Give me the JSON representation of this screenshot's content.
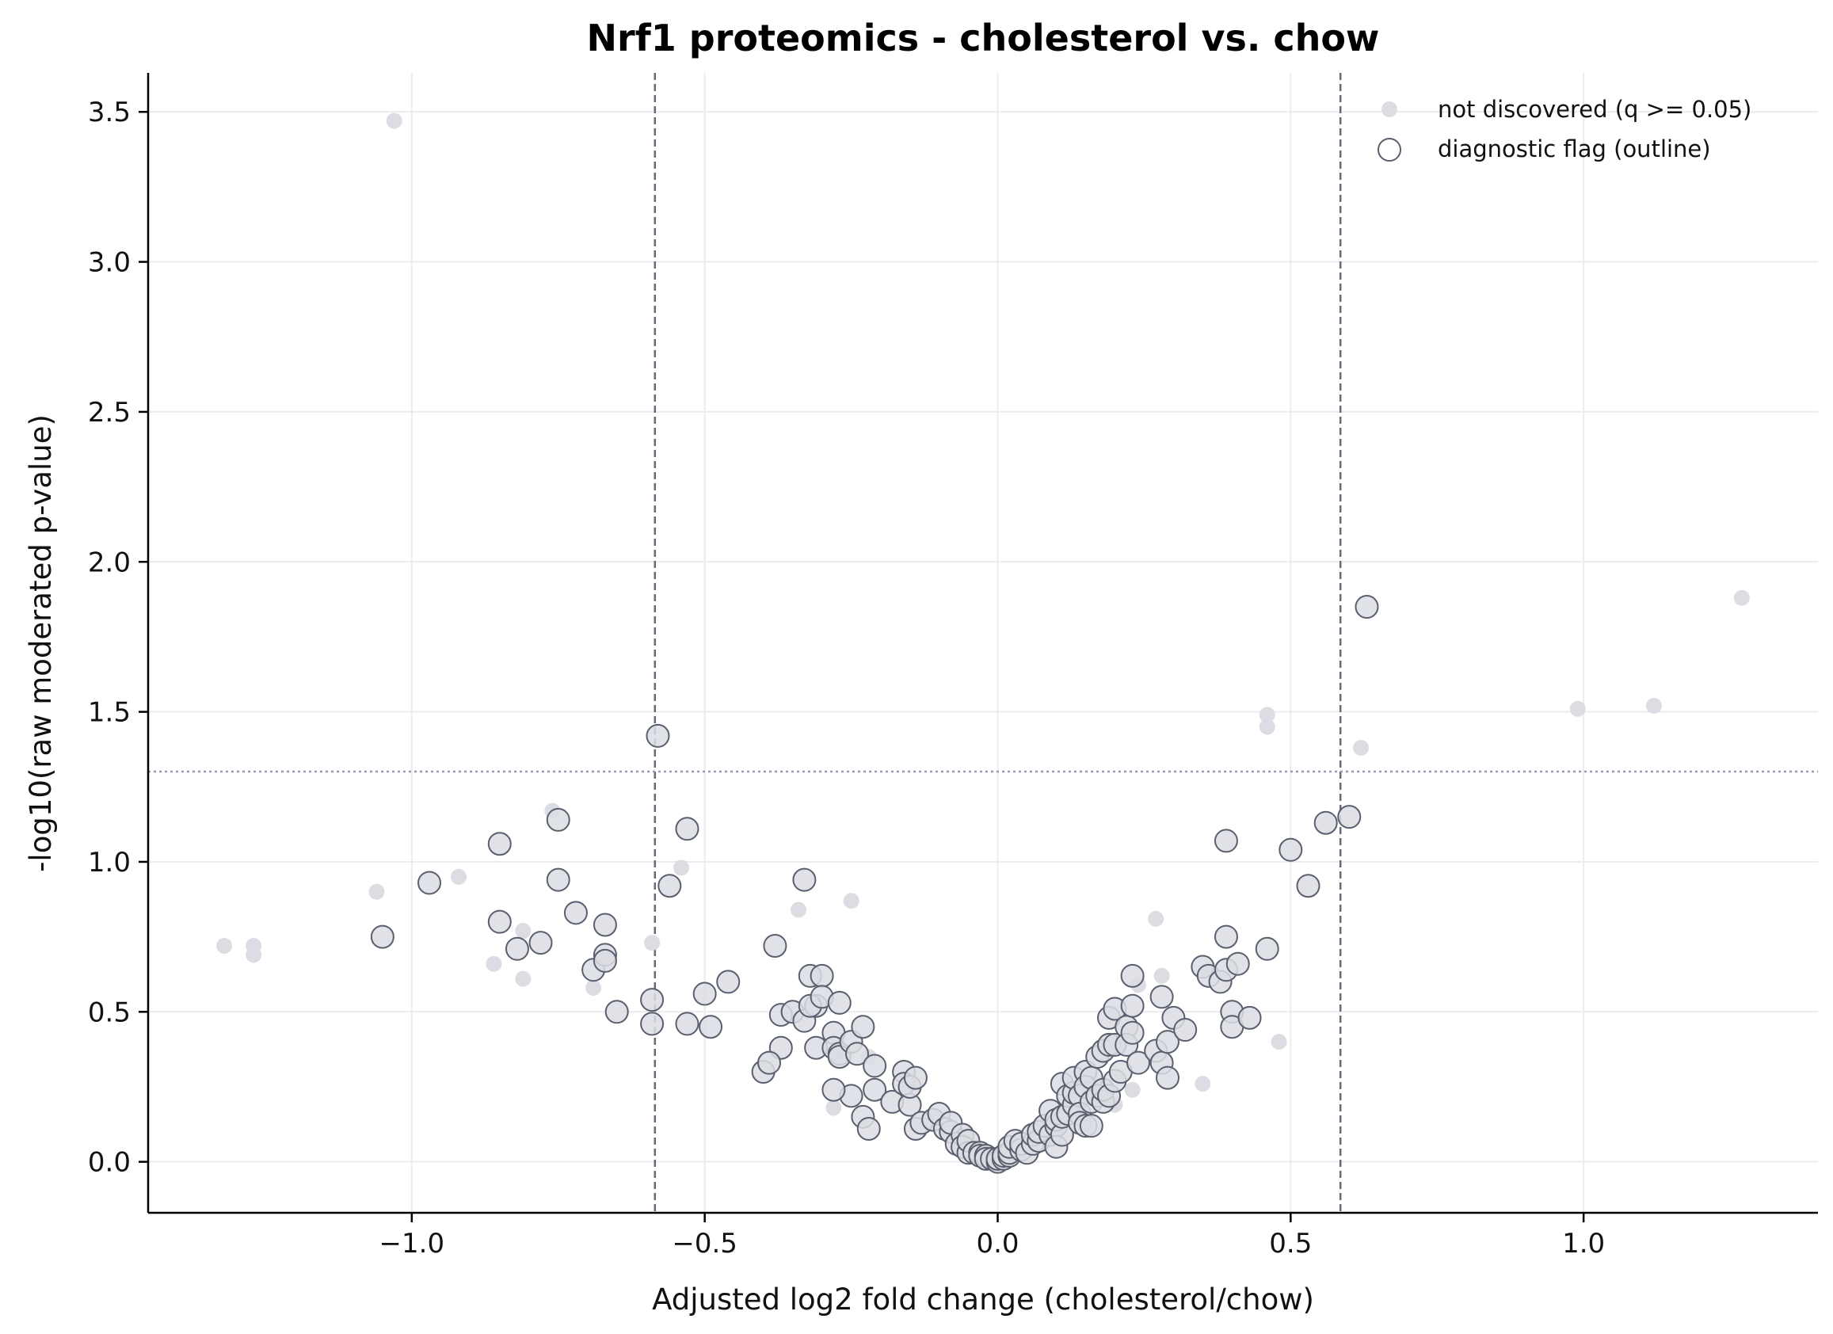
{
  "chart_data": {
    "type": "scatter",
    "title": "Nrf1 proteomics - cholesterol vs. chow",
    "xlabel": "Adjusted log2 fold change (cholesterol/chow)",
    "ylabel": "-log10(raw moderated p-value)",
    "xlim": [
      -1.45,
      1.4
    ],
    "ylim": [
      -0.17,
      3.63
    ],
    "x_ticks": [
      -1.0,
      -0.5,
      0.0,
      0.5,
      1.0
    ],
    "x_tick_labels": [
      "−1.0",
      "−0.5",
      "0.0",
      "0.5",
      "1.0"
    ],
    "y_ticks": [
      0.0,
      0.5,
      1.0,
      1.5,
      2.0,
      2.5,
      3.0,
      3.5
    ],
    "y_tick_labels": [
      "0.0",
      "0.5",
      "1.0",
      "1.5",
      "2.0",
      "2.5",
      "3.0",
      "3.5"
    ],
    "grid": true,
    "legend_position": "top-right",
    "thresholds": {
      "fold_change_lines": [
        -0.585,
        0.585
      ],
      "pvalue_line": 1.301
    },
    "colors": {
      "fill": "#dcdde3",
      "outline": "#5a5f6e",
      "threshold_dashed": "#666a78",
      "threshold_dotted": "#9a9db0",
      "grid": "#ececf0"
    },
    "legend": [
      {
        "label": "not discovered (q >= 0.05)",
        "marker": "dot"
      },
      {
        "label": "diagnostic flag (outline)",
        "marker": "circle-outline"
      }
    ],
    "series": [
      {
        "name": "not discovered (q >= 0.05)",
        "points": [
          [
            -1.32,
            0.72
          ],
          [
            -1.27,
            0.72
          ],
          [
            -1.27,
            0.69
          ],
          [
            -1.03,
            3.47
          ],
          [
            -1.06,
            0.9
          ],
          [
            -0.92,
            0.95
          ],
          [
            -0.86,
            0.66
          ],
          [
            -0.81,
            0.77
          ],
          [
            -0.81,
            0.61
          ],
          [
            -0.76,
            1.17
          ],
          [
            -0.69,
            0.58
          ],
          [
            -0.59,
            0.73
          ],
          [
            -0.54,
            0.98
          ],
          [
            -0.34,
            0.84
          ],
          [
            -0.25,
            0.87
          ],
          [
            -0.28,
            0.18
          ],
          [
            -0.22,
            0.35
          ],
          [
            0.27,
            0.81
          ],
          [
            0.28,
            0.62
          ],
          [
            0.23,
            0.24
          ],
          [
            0.2,
            0.19
          ],
          [
            0.24,
            0.59
          ],
          [
            0.35,
            0.26
          ],
          [
            0.46,
            1.49
          ],
          [
            0.46,
            1.45
          ],
          [
            0.48,
            0.4
          ],
          [
            0.62,
            1.38
          ],
          [
            0.99,
            1.51
          ],
          [
            1.12,
            1.52
          ],
          [
            1.27,
            1.88
          ]
        ]
      },
      {
        "name": "diagnostic flag (outline)",
        "points": [
          [
            -1.05,
            0.75
          ],
          [
            -0.97,
            0.93
          ],
          [
            -0.85,
            1.06
          ],
          [
            -0.85,
            0.8
          ],
          [
            -0.82,
            0.71
          ],
          [
            -0.78,
            0.73
          ],
          [
            -0.75,
            1.14
          ],
          [
            -0.75,
            0.94
          ],
          [
            -0.72,
            0.83
          ],
          [
            -0.69,
            0.64
          ],
          [
            -0.67,
            0.79
          ],
          [
            -0.67,
            0.69
          ],
          [
            -0.67,
            0.67
          ],
          [
            -0.65,
            0.5
          ],
          [
            -0.59,
            0.54
          ],
          [
            -0.58,
            1.42
          ],
          [
            -0.59,
            0.46
          ],
          [
            -0.56,
            0.92
          ],
          [
            -0.53,
            1.11
          ],
          [
            -0.53,
            0.46
          ],
          [
            -0.5,
            0.56
          ],
          [
            -0.49,
            0.45
          ],
          [
            -0.46,
            0.6
          ],
          [
            -0.38,
            0.72
          ],
          [
            -0.37,
            0.49
          ],
          [
            -0.37,
            0.38
          ],
          [
            -0.4,
            0.3
          ],
          [
            -0.39,
            0.33
          ],
          [
            -0.35,
            0.5
          ],
          [
            -0.33,
            0.94
          ],
          [
            -0.33,
            0.47
          ],
          [
            -0.32,
            0.62
          ],
          [
            -0.31,
            0.52
          ],
          [
            -0.32,
            0.52
          ],
          [
            -0.3,
            0.62
          ],
          [
            -0.3,
            0.55
          ],
          [
            -0.31,
            0.38
          ],
          [
            -0.28,
            0.43
          ],
          [
            -0.28,
            0.38
          ],
          [
            -0.27,
            0.36
          ],
          [
            -0.27,
            0.35
          ],
          [
            -0.27,
            0.53
          ],
          [
            -0.25,
            0.22
          ],
          [
            -0.25,
            0.4
          ],
          [
            -0.24,
            0.36
          ],
          [
            -0.23,
            0.45
          ],
          [
            -0.28,
            0.24
          ],
          [
            -0.23,
            0.15
          ],
          [
            -0.22,
            0.11
          ],
          [
            -0.21,
            0.32
          ],
          [
            -0.21,
            0.24
          ],
          [
            -0.18,
            0.2
          ],
          [
            -0.16,
            0.3
          ],
          [
            -0.16,
            0.26
          ],
          [
            -0.15,
            0.19
          ],
          [
            -0.15,
            0.25
          ],
          [
            -0.14,
            0.28
          ],
          [
            -0.14,
            0.11
          ],
          [
            -0.13,
            0.13
          ],
          [
            -0.11,
            0.14
          ],
          [
            -0.1,
            0.16
          ],
          [
            -0.09,
            0.11
          ],
          [
            -0.08,
            0.1
          ],
          [
            -0.08,
            0.13
          ],
          [
            -0.07,
            0.06
          ],
          [
            -0.06,
            0.09
          ],
          [
            -0.06,
            0.05
          ],
          [
            -0.05,
            0.03
          ],
          [
            -0.05,
            0.07
          ],
          [
            -0.04,
            0.03
          ],
          [
            -0.03,
            0.03
          ],
          [
            -0.03,
            0.02
          ],
          [
            -0.02,
            0.02
          ],
          [
            -0.02,
            0.01
          ],
          [
            -0.01,
            0.01
          ],
          [
            0.0,
            0.0
          ],
          [
            0.0,
            0.01
          ],
          [
            0.01,
            0.01
          ],
          [
            0.01,
            0.02
          ],
          [
            0.02,
            0.02
          ],
          [
            0.02,
            0.03
          ],
          [
            0.02,
            0.05
          ],
          [
            0.03,
            0.07
          ],
          [
            0.04,
            0.04
          ],
          [
            0.04,
            0.06
          ],
          [
            0.05,
            0.03
          ],
          [
            0.06,
            0.06
          ],
          [
            0.06,
            0.09
          ],
          [
            0.07,
            0.07
          ],
          [
            0.07,
            0.1
          ],
          [
            0.08,
            0.12
          ],
          [
            0.09,
            0.09
          ],
          [
            0.09,
            0.17
          ],
          [
            0.1,
            0.12
          ],
          [
            0.1,
            0.14
          ],
          [
            0.1,
            0.05
          ],
          [
            0.11,
            0.09
          ],
          [
            0.11,
            0.15
          ],
          [
            0.11,
            0.26
          ],
          [
            0.12,
            0.16
          ],
          [
            0.12,
            0.22
          ],
          [
            0.13,
            0.19
          ],
          [
            0.13,
            0.23
          ],
          [
            0.13,
            0.28
          ],
          [
            0.14,
            0.22
          ],
          [
            0.14,
            0.16
          ],
          [
            0.14,
            0.13
          ],
          [
            0.15,
            0.3
          ],
          [
            0.15,
            0.25
          ],
          [
            0.15,
            0.12
          ],
          [
            0.16,
            0.2
          ],
          [
            0.16,
            0.28
          ],
          [
            0.16,
            0.12
          ],
          [
            0.17,
            0.35
          ],
          [
            0.17,
            0.22
          ],
          [
            0.18,
            0.37
          ],
          [
            0.18,
            0.2
          ],
          [
            0.18,
            0.24
          ],
          [
            0.19,
            0.39
          ],
          [
            0.19,
            0.48
          ],
          [
            0.19,
            0.22
          ],
          [
            0.2,
            0.27
          ],
          [
            0.2,
            0.39
          ],
          [
            0.2,
            0.51
          ],
          [
            0.21,
            0.3
          ],
          [
            0.22,
            0.45
          ],
          [
            0.22,
            0.39
          ],
          [
            0.23,
            0.43
          ],
          [
            0.23,
            0.52
          ],
          [
            0.23,
            0.62
          ],
          [
            0.24,
            0.33
          ],
          [
            0.27,
            0.37
          ],
          [
            0.28,
            0.55
          ],
          [
            0.28,
            0.33
          ],
          [
            0.29,
            0.28
          ],
          [
            0.29,
            0.4
          ],
          [
            0.3,
            0.48
          ],
          [
            0.32,
            0.44
          ],
          [
            0.35,
            0.65
          ],
          [
            0.36,
            0.62
          ],
          [
            0.38,
            0.6
          ],
          [
            0.39,
            0.64
          ],
          [
            0.39,
            0.75
          ],
          [
            0.39,
            1.07
          ],
          [
            0.4,
            0.5
          ],
          [
            0.4,
            0.45
          ],
          [
            0.41,
            0.66
          ],
          [
            0.43,
            0.48
          ],
          [
            0.46,
            0.71
          ],
          [
            0.5,
            1.04
          ],
          [
            0.53,
            0.92
          ],
          [
            0.56,
            1.13
          ],
          [
            0.6,
            1.15
          ],
          [
            0.63,
            1.85
          ]
        ]
      }
    ]
  }
}
